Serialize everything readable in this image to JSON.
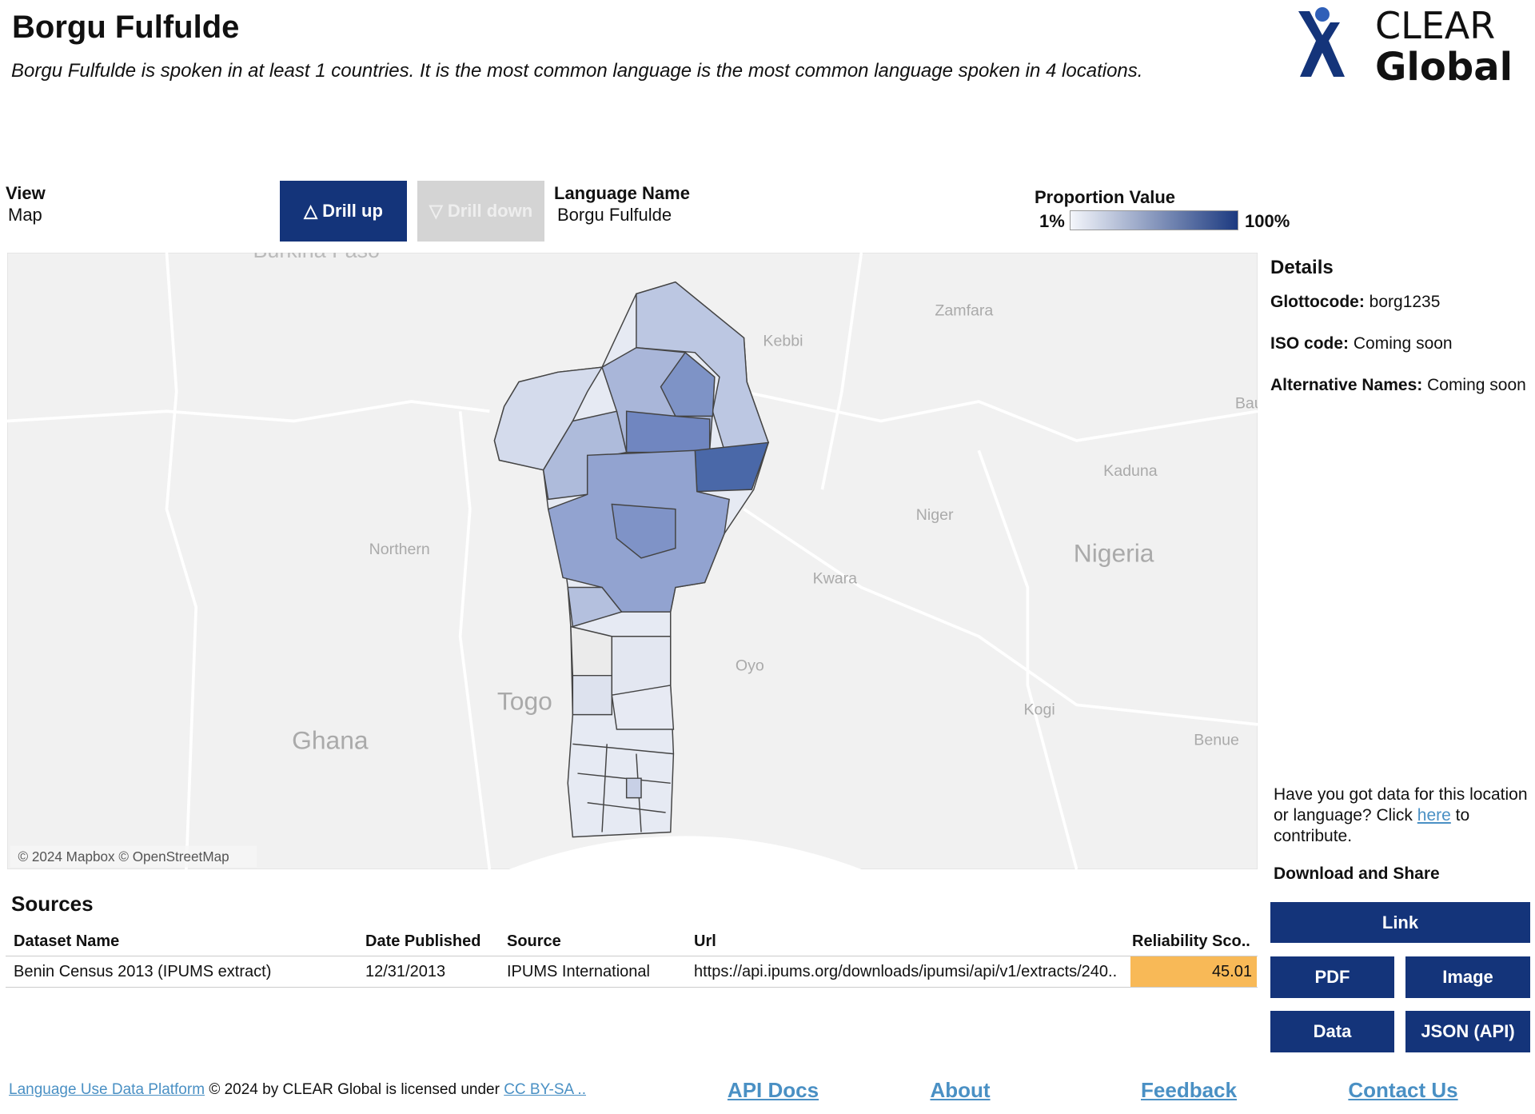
{
  "header": {
    "title": "Borgu Fulfulde",
    "description": "Borgu Fulfulde is spoken in at least 1 countries. It is the most common language is the most common language spoken in 4 locations."
  },
  "logo": {
    "line1": "CLEAR",
    "line2": "Global"
  },
  "controls": {
    "view_label": "View",
    "view_value": "Map",
    "drill_up": "△ Drill up",
    "drill_down": "▽ Drill down",
    "language_label": "Language Name",
    "language_value": "Borgu Fulfulde"
  },
  "legend": {
    "title": "Proportion Value",
    "min_label": "1%",
    "max_label": "100%"
  },
  "map": {
    "labels": [
      "Burkina Faso",
      "Zamfara",
      "Kebbi",
      "Bauchi",
      "Kaduna",
      "Niger",
      "Nigeria",
      "Northern",
      "Kwara",
      "Oyo",
      "Togo",
      "Ghana",
      "Kogi",
      "Benue"
    ],
    "attribution": "© 2024 Mapbox © OpenStreetMap"
  },
  "details": {
    "title": "Details",
    "glottocode_label": "Glottocode:",
    "glottocode_value": "borg1235",
    "iso_label": "ISO code:",
    "iso_value": "Coming soon",
    "alt_label": "Alternative Names:",
    "alt_value": "Coming soon"
  },
  "contribute": {
    "text_before": "Have you got data for this location or language? Click",
    "link": "here",
    "text_after": "to contribute."
  },
  "download": {
    "title": "Download and Share",
    "buttons": [
      "Link",
      "PDF",
      "Image",
      "Data",
      "JSON (API)"
    ]
  },
  "sources": {
    "title": "Sources",
    "columns": [
      "Dataset Name",
      "Date Published",
      "Source",
      "Url",
      "Reliability Sco.."
    ],
    "rows": [
      [
        "Benin Census 2013 (IPUMS extract)",
        "12/31/2013",
        "IPUMS International",
        "https://api.ipums.org/downloads/ipumsi/api/v1/extracts/240..",
        45.01
      ]
    ]
  },
  "footer": {
    "platform_link": "Language Use Data Platform",
    "license_text": "© 2024 by CLEAR Global is licensed under",
    "license_link": "CC BY-SA ..",
    "nav": [
      "API Docs",
      "About",
      "Feedback",
      "Contact Us"
    ]
  }
}
